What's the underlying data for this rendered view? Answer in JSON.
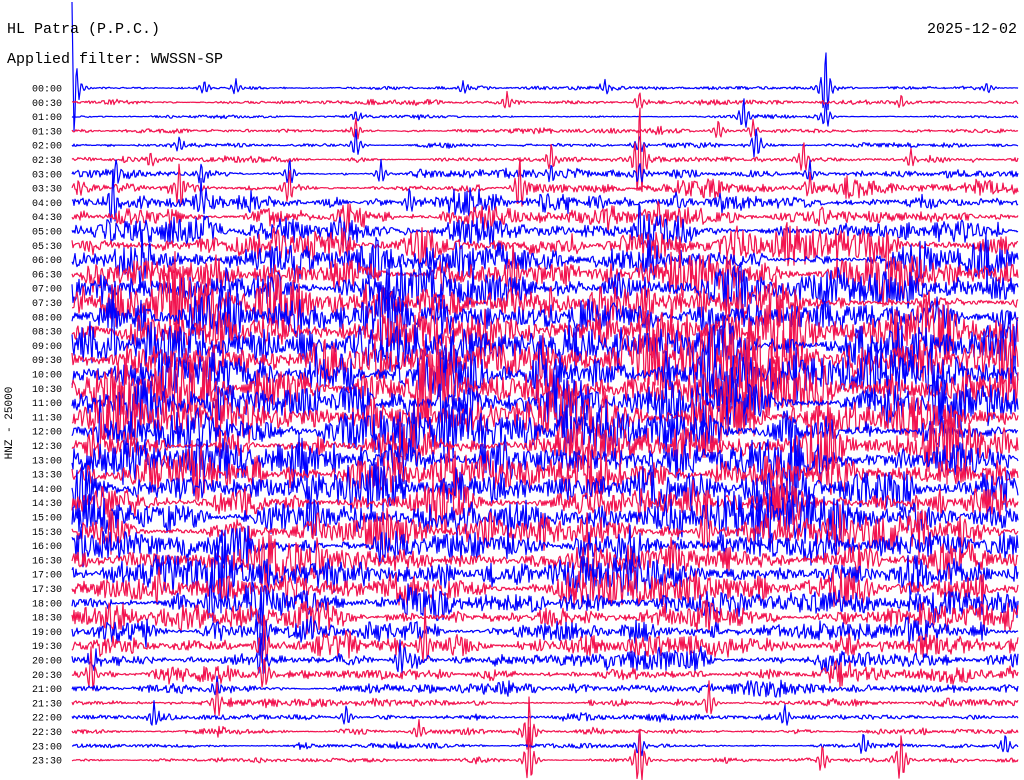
{
  "chart_data": {
    "type": "line",
    "title": "HL Patra (P.P.C.)",
    "subtitle": "Applied filter: WWSSN-SP",
    "date": "2025-12-02",
    "ylabel": "HNZ - 25000",
    "rows": [
      {
        "label": "00:00",
        "color": "#0000ff",
        "amplitude": 0.1,
        "events": [
          {
            "minute": 0.0,
            "amp": 6.0
          },
          {
            "minute": 23.9,
            "amp": 3.0
          },
          {
            "minute": 4.2,
            "amp": 0.6
          },
          {
            "minute": 5.2,
            "amp": 0.6
          },
          {
            "minute": 12.4,
            "amp": 0.5
          },
          {
            "minute": 16.9,
            "amp": 0.6
          },
          {
            "minute": 29.0,
            "amp": 0.5
          }
        ]
      },
      {
        "label": "00:30",
        "color": "#f2134f",
        "amplitude": 0.12,
        "events": [
          {
            "minute": 13.8,
            "amp": 0.9
          },
          {
            "minute": 26.3,
            "amp": 0.6
          },
          {
            "minute": 18.0,
            "amp": 0.8
          }
        ]
      },
      {
        "label": "01:00",
        "color": "#0000ff",
        "amplitude": 0.12,
        "events": [
          {
            "minute": 21.3,
            "amp": 1.5
          },
          {
            "minute": 23.9,
            "amp": 1.2
          },
          {
            "minute": 9.0,
            "amp": 0.5
          }
        ]
      },
      {
        "label": "01:30",
        "color": "#f2134f",
        "amplitude": 0.14,
        "events": [
          {
            "minute": 20.5,
            "amp": 0.9
          },
          {
            "minute": 9.0,
            "amp": 0.9
          },
          {
            "minute": 21.6,
            "amp": 0.8
          }
        ]
      },
      {
        "label": "02:00",
        "color": "#0000ff",
        "amplitude": 0.15,
        "events": [
          {
            "minute": 9.0,
            "amp": 1.2
          },
          {
            "minute": 21.7,
            "amp": 1.4
          },
          {
            "minute": 3.4,
            "amp": 0.6
          },
          {
            "minute": 18.0,
            "amp": 0.8
          }
        ]
      },
      {
        "label": "02:30",
        "color": "#f2134f",
        "amplitude": 0.18,
        "events": [
          {
            "minute": 15.2,
            "amp": 1.3
          },
          {
            "minute": 18.0,
            "amp": 4.5
          },
          {
            "minute": 23.2,
            "amp": 1.5
          },
          {
            "minute": 26.6,
            "amp": 0.8
          },
          {
            "minute": 2.5,
            "amp": 0.6
          }
        ]
      },
      {
        "label": "03:00",
        "color": "#0000ff",
        "amplitude": 0.25,
        "events": [
          {
            "minute": 1.4,
            "amp": 1.0
          },
          {
            "minute": 4.1,
            "amp": 0.9
          },
          {
            "minute": 6.9,
            "amp": 1.2
          },
          {
            "minute": 9.8,
            "amp": 1.0
          },
          {
            "minute": 15.2,
            "amp": 0.9
          },
          {
            "minute": 18.0,
            "amp": 1.0
          },
          {
            "minute": 23.4,
            "amp": 1.0
          }
        ]
      },
      {
        "label": "03:30",
        "color": "#f2134f",
        "amplitude": 0.35,
        "events": [
          {
            "minute": 14.2,
            "amp": 2.5
          },
          {
            "minute": 3.4,
            "amp": 2.0
          },
          {
            "minute": 6.9,
            "amp": 1.5
          },
          {
            "minute": 23.4,
            "amp": 1.2
          }
        ]
      },
      {
        "label": "04:00",
        "color": "#0000ff",
        "amplitude": 0.45,
        "events": [
          {
            "minute": 1.3,
            "amp": 2.5
          },
          {
            "minute": 4.1,
            "amp": 1.5
          },
          {
            "minute": 10.7,
            "amp": 1.2
          }
        ]
      },
      {
        "label": "04:30",
        "color": "#f2134f",
        "amplitude": 0.55,
        "events": []
      },
      {
        "label": "05:00",
        "color": "#0000ff",
        "amplitude": 0.65,
        "events": [
          {
            "minute": 18.0,
            "amp": 2.0
          }
        ]
      },
      {
        "label": "05:30",
        "color": "#f2134f",
        "amplitude": 0.7,
        "events": []
      },
      {
        "label": "06:00",
        "color": "#0000ff",
        "amplitude": 0.8,
        "events": []
      },
      {
        "label": "06:30",
        "color": "#f2134f",
        "amplitude": 0.8,
        "events": [
          {
            "minute": 14.0,
            "amp": 2.0
          }
        ]
      },
      {
        "label": "07:00",
        "color": "#0000ff",
        "amplitude": 0.85,
        "events": []
      },
      {
        "label": "07:30",
        "color": "#f2134f",
        "amplitude": 0.9,
        "events": []
      },
      {
        "label": "08:00",
        "color": "#0000ff",
        "amplitude": 0.9,
        "events": []
      },
      {
        "label": "08:30",
        "color": "#f2134f",
        "amplitude": 0.9,
        "events": []
      },
      {
        "label": "09:00",
        "color": "#0000ff",
        "amplitude": 1.0,
        "events": [
          {
            "minute": 1.3,
            "amp": 3.0
          }
        ]
      },
      {
        "label": "09:30",
        "color": "#f2134f",
        "amplitude": 1.0,
        "events": []
      },
      {
        "label": "10:00",
        "color": "#0000ff",
        "amplitude": 1.0,
        "events": [
          {
            "minute": 12.0,
            "amp": 2.5
          }
        ]
      },
      {
        "label": "10:30",
        "color": "#f2134f",
        "amplitude": 1.0,
        "events": []
      },
      {
        "label": "11:00",
        "color": "#0000ff",
        "amplitude": 1.0,
        "events": []
      },
      {
        "label": "11:30",
        "color": "#f2134f",
        "amplitude": 1.0,
        "events": []
      },
      {
        "label": "12:00",
        "color": "#0000ff",
        "amplitude": 0.95,
        "events": [
          {
            "minute": 0.9,
            "amp": 2.5
          }
        ]
      },
      {
        "label": "12:30",
        "color": "#f2134f",
        "amplitude": 0.9,
        "events": []
      },
      {
        "label": "13:00",
        "color": "#0000ff",
        "amplitude": 0.9,
        "events": []
      },
      {
        "label": "13:30",
        "color": "#f2134f",
        "amplitude": 0.85,
        "events": []
      },
      {
        "label": "14:00",
        "color": "#0000ff",
        "amplitude": 0.85,
        "events": []
      },
      {
        "label": "14:30",
        "color": "#f2134f",
        "amplitude": 0.8,
        "events": []
      },
      {
        "label": "15:00",
        "color": "#0000ff",
        "amplitude": 0.8,
        "events": []
      },
      {
        "label": "15:30",
        "color": "#f2134f",
        "amplitude": 0.8,
        "events": [
          {
            "minute": 20.1,
            "amp": 3.0
          }
        ]
      },
      {
        "label": "16:00",
        "color": "#0000ff",
        "amplitude": 0.75,
        "events": []
      },
      {
        "label": "16:30",
        "color": "#f2134f",
        "amplitude": 0.75,
        "events": []
      },
      {
        "label": "17:00",
        "color": "#0000ff",
        "amplitude": 0.75,
        "events": []
      },
      {
        "label": "17:30",
        "color": "#f2134f",
        "amplitude": 0.7,
        "events": []
      },
      {
        "label": "18:00",
        "color": "#0000ff",
        "amplitude": 0.7,
        "events": [
          {
            "minute": 4.4,
            "amp": 2.5
          }
        ]
      },
      {
        "label": "18:30",
        "color": "#f2134f",
        "amplitude": 0.65,
        "events": []
      },
      {
        "label": "19:00",
        "color": "#0000ff",
        "amplitude": 0.6,
        "events": [
          {
            "minute": 6.0,
            "amp": 3.0
          }
        ]
      },
      {
        "label": "19:30",
        "color": "#f2134f",
        "amplitude": 0.6,
        "events": [
          {
            "minute": 6.1,
            "amp": 2.5
          },
          {
            "minute": 11.2,
            "amp": 2.5
          }
        ]
      },
      {
        "label": "20:00",
        "color": "#0000ff",
        "amplitude": 0.5,
        "events": [
          {
            "minute": 10.4,
            "amp": 1.5
          },
          {
            "minute": 6.0,
            "amp": 1.8
          }
        ]
      },
      {
        "label": "20:30",
        "color": "#f2134f",
        "amplitude": 0.4,
        "events": [
          {
            "minute": 0.6,
            "amp": 2.0
          },
          {
            "minute": 6.1,
            "amp": 1.5
          }
        ]
      },
      {
        "label": "21:00",
        "color": "#0000ff",
        "amplitude": 0.3,
        "events": [
          {
            "minute": 4.6,
            "amp": 1.0
          }
        ]
      },
      {
        "label": "21:30",
        "color": "#f2134f",
        "amplitude": 0.25,
        "events": [
          {
            "minute": 4.6,
            "amp": 1.5
          },
          {
            "minute": 20.2,
            "amp": 1.5
          }
        ]
      },
      {
        "label": "22:00",
        "color": "#0000ff",
        "amplitude": 0.2,
        "events": [
          {
            "minute": 2.6,
            "amp": 1.2
          },
          {
            "minute": 8.7,
            "amp": 1.0
          },
          {
            "minute": 22.6,
            "amp": 1.0
          }
        ]
      },
      {
        "label": "22:30",
        "color": "#f2134f",
        "amplitude": 0.2,
        "events": [
          {
            "minute": 14.5,
            "amp": 2.5
          },
          {
            "minute": 11.0,
            "amp": 0.8
          }
        ]
      },
      {
        "label": "23:00",
        "color": "#0000ff",
        "amplitude": 0.15,
        "events": [
          {
            "minute": 25.1,
            "amp": 1.0
          },
          {
            "minute": 29.6,
            "amp": 0.9
          },
          {
            "minute": 18.0,
            "amp": 1.2
          }
        ]
      },
      {
        "label": "23:30",
        "color": "#f2134f",
        "amplitude": 0.15,
        "events": [
          {
            "minute": 18.0,
            "amp": 2.8
          },
          {
            "minute": 26.3,
            "amp": 2.2
          },
          {
            "minute": 14.5,
            "amp": 2.5
          },
          {
            "minute": 23.8,
            "amp": 1.2
          }
        ]
      }
    ]
  }
}
